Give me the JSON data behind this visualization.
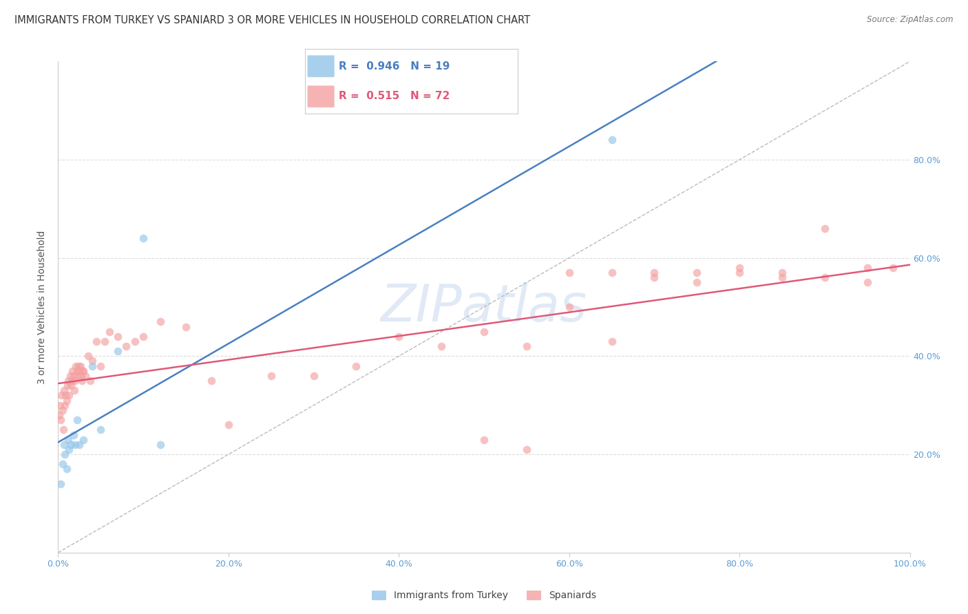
{
  "title": "IMMIGRANTS FROM TURKEY VS SPANIARD 3 OR MORE VEHICLES IN HOUSEHOLD CORRELATION CHART",
  "source": "Source: ZipAtlas.com",
  "ylabel": "3 or more Vehicles in Household",
  "blue_color": "#92C5E8",
  "pink_color": "#F4A0A0",
  "blue_line_color": "#4A7FC1",
  "pink_line_color": "#E05878",
  "dashed_line_color": "#BBBBBB",
  "grid_color": "#DDDDDD",
  "title_color": "#333333",
  "axis_color": "#5B9BD5",
  "watermark_color": "#C8D8EE",
  "turkey_x": [
    0.3,
    0.5,
    0.7,
    0.8,
    1.0,
    1.2,
    1.3,
    1.5,
    1.8,
    2.0,
    2.2,
    2.5,
    3.0,
    4.0,
    5.0,
    7.0,
    10.0,
    12.0,
    65.0
  ],
  "turkey_y": [
    14,
    18,
    22,
    20,
    17,
    23,
    21,
    22,
    24,
    22,
    27,
    22,
    23,
    38,
    25,
    41,
    64,
    22,
    84
  ],
  "spain_x": [
    0.1,
    0.2,
    0.3,
    0.4,
    0.5,
    0.6,
    0.7,
    0.8,
    0.9,
    1.0,
    1.1,
    1.2,
    1.3,
    1.4,
    1.5,
    1.6,
    1.7,
    1.8,
    1.9,
    2.0,
    2.1,
    2.2,
    2.3,
    2.4,
    2.5,
    2.6,
    2.7,
    2.8,
    2.9,
    3.0,
    3.2,
    3.5,
    3.8,
    4.0,
    4.5,
    5.0,
    5.5,
    6.0,
    7.0,
    8.0,
    9.0,
    10.0,
    12.0,
    15.0,
    18.0,
    20.0,
    25.0,
    30.0,
    35.0,
    40.0,
    45.0,
    50.0,
    55.0,
    60.0,
    65.0,
    70.0,
    75.0,
    80.0,
    85.0,
    90.0,
    95.0,
    98.0,
    50.0,
    55.0,
    60.0,
    65.0,
    70.0,
    75.0,
    80.0,
    85.0,
    90.0,
    95.0
  ],
  "spain_y": [
    28,
    30,
    27,
    32,
    29,
    25,
    33,
    30,
    32,
    31,
    34,
    35,
    32,
    36,
    34,
    35,
    37,
    36,
    33,
    35,
    38,
    37,
    36,
    38,
    37,
    38,
    36,
    35,
    37,
    37,
    36,
    40,
    35,
    39,
    43,
    38,
    43,
    45,
    44,
    42,
    43,
    44,
    47,
    46,
    35,
    26,
    36,
    36,
    38,
    44,
    42,
    23,
    21,
    57,
    57,
    56,
    57,
    58,
    56,
    66,
    58,
    58,
    45,
    42,
    50,
    43,
    57,
    55,
    57,
    57,
    56,
    55
  ],
  "xlim": [
    0,
    100
  ],
  "ylim": [
    0,
    100
  ],
  "xticks": [
    0,
    20,
    40,
    60,
    80,
    100
  ],
  "yticks_right": [
    20,
    40,
    60,
    80
  ],
  "xtick_labels": [
    "0.0%",
    "20.0%",
    "40.0%",
    "60.0%",
    "80.0%",
    "100.0%"
  ],
  "ytick_labels_right": [
    "20.0%",
    "40.0%",
    "60.0%",
    "80.0%"
  ]
}
